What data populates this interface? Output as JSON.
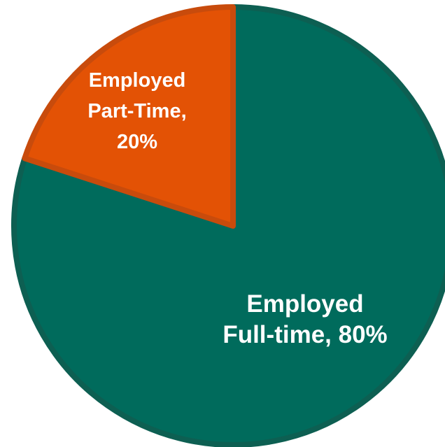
{
  "chart_data": {
    "type": "pie",
    "title": "",
    "slices": [
      {
        "label_lines": [
          "Employed",
          "Full-time, 80%"
        ],
        "value": 80,
        "color": "#006b5c"
      },
      {
        "label_lines": [
          "Employed",
          "Part-Time,",
          "20%"
        ],
        "value": 20,
        "color": "#e35205"
      }
    ],
    "start_at": "top",
    "direction": "clockwise",
    "legend": "none"
  }
}
